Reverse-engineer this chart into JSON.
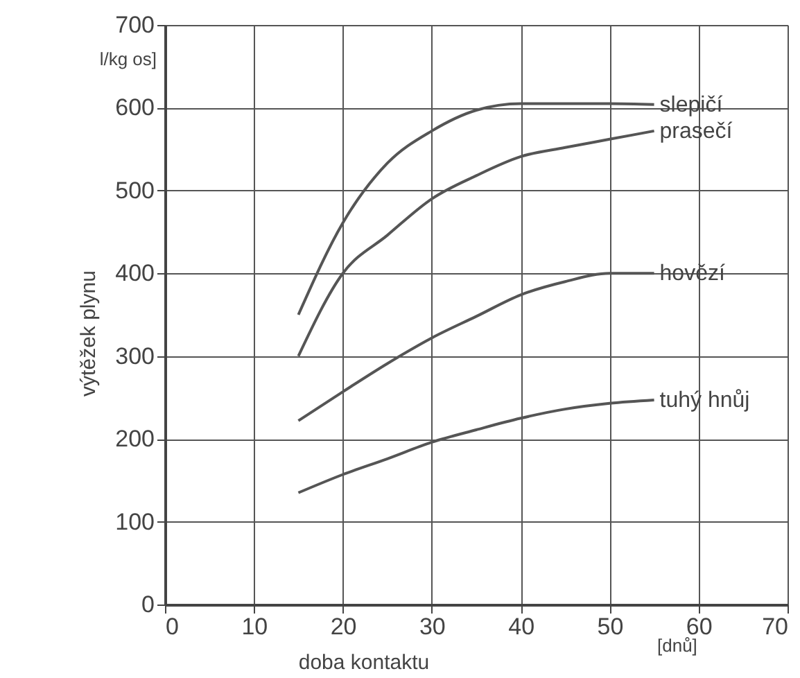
{
  "chart_data": {
    "type": "line",
    "xlabel": "doba kontaktu",
    "ylabel": "výtěžek plynu",
    "annotations": [
      "l/kg os]",
      "[dnů]"
    ],
    "xlim": [
      0,
      70
    ],
    "xticks": [
      0,
      10,
      20,
      30,
      40,
      50,
      60,
      70
    ],
    "ylim": [
      0,
      700
    ],
    "yticks": [
      0,
      100,
      200,
      300,
      400,
      500,
      600,
      700
    ],
    "grid": true,
    "marker": "none",
    "line_style": "solid",
    "series": [
      {
        "name": "slepičí",
        "color": "#555555",
        "x": [
          15,
          20,
          25,
          30,
          35,
          40,
          45,
          50,
          55
        ],
        "values": [
          350,
          461,
          533,
          572,
          597,
          605,
          605,
          605,
          604
        ]
      },
      {
        "name": "prasečí",
        "color": "#555555",
        "x": [
          15,
          20,
          25,
          30,
          35,
          40,
          45,
          50,
          55
        ],
        "values": [
          300,
          400,
          446,
          490,
          518,
          541,
          552,
          562,
          572
        ]
      },
      {
        "name": "hovězí",
        "color": "#555555",
        "x": [
          15,
          20,
          25,
          30,
          35,
          40,
          45,
          50,
          55
        ],
        "values": [
          222,
          257,
          291,
          322,
          348,
          374,
          390,
          400,
          400
        ]
      },
      {
        "name": "tuhý hnůj",
        "color": "#555555",
        "x": [
          15,
          20,
          25,
          30,
          35,
          40,
          45,
          50,
          55
        ],
        "values": [
          135,
          157,
          176,
          196,
          211,
          225,
          236,
          243,
          247
        ]
      }
    ]
  }
}
